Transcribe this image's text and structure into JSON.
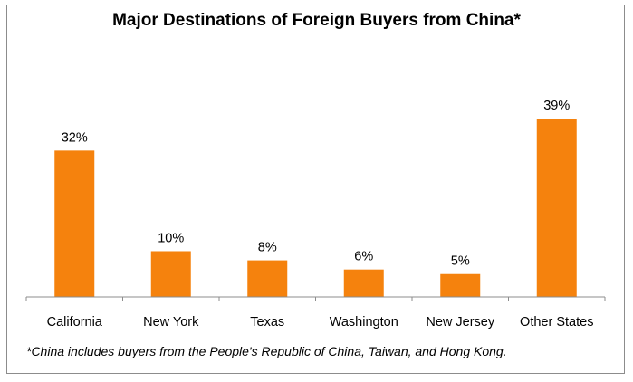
{
  "chart_data": {
    "type": "bar",
    "title": "Major Destinations of Foreign Buyers from China*",
    "categories": [
      "California",
      "New York",
      "Texas",
      "Washington",
      "New Jersey",
      "Other States"
    ],
    "values": [
      32,
      10,
      8,
      6,
      5,
      39
    ],
    "value_labels": [
      "32%",
      "10%",
      "8%",
      "6%",
      "5%",
      "39%"
    ],
    "unit": "%",
    "ylim": [
      0,
      40
    ],
    "grid": false,
    "legend": "none",
    "footnote": "*China includes buyers from the People's Republic of China, Taiwan, and Hong Kong.",
    "bar_color": "#f5820d"
  }
}
